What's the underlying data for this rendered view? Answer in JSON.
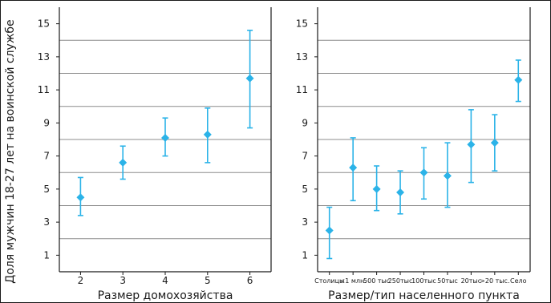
{
  "colors": {
    "series": "#2bb3e8",
    "grid": "#8c8c8c",
    "axis": "#1a1a1a"
  },
  "y_axis_title": "Доля мужчин 18-27 лет на воинской службе",
  "chart_data": [
    {
      "type": "scatter",
      "title": "",
      "xlabel": "Размер домохозяйства",
      "ylabel": "Доля мужчин 18-27 лет на воинской службе",
      "categories": [
        "2",
        "3",
        "4",
        "5",
        "6"
      ],
      "ylim": [
        0,
        16
      ],
      "yticks": [
        1,
        3,
        5,
        7,
        9,
        11,
        13,
        15
      ],
      "grid_lines": [
        2,
        4,
        6,
        8,
        10,
        12,
        14
      ],
      "grid": true,
      "series": [
        {
          "values": [
            4.5,
            6.6,
            8.1,
            8.3,
            11.7
          ],
          "lower": [
            3.4,
            5.6,
            7.0,
            6.6,
            8.7
          ],
          "upper": [
            5.7,
            7.6,
            9.3,
            9.9,
            14.6
          ]
        }
      ]
    },
    {
      "type": "scatter",
      "title": "",
      "xlabel": "Размер/тип населенного пункта",
      "ylabel": "",
      "categories": [
        "Столицы",
        "<1 млн.",
        "500 тыс",
        "250тыс",
        "100тыс",
        "50тыс",
        "20тыс",
        ">20 тыс.",
        "Село"
      ],
      "ylim": [
        0,
        16
      ],
      "yticks": [
        1,
        3,
        5,
        7,
        9,
        11,
        13,
        15
      ],
      "grid_lines": [
        2,
        4,
        6,
        8,
        10,
        12,
        14
      ],
      "grid": true,
      "series": [
        {
          "values": [
            2.5,
            6.3,
            5.0,
            4.8,
            6.0,
            5.8,
            7.7,
            7.8,
            11.6
          ],
          "lower": [
            0.8,
            4.3,
            3.7,
            3.5,
            4.4,
            3.9,
            5.4,
            6.1,
            10.3
          ],
          "upper": [
            3.9,
            8.1,
            6.4,
            6.1,
            7.5,
            7.8,
            9.8,
            9.5,
            12.8
          ]
        }
      ]
    }
  ]
}
